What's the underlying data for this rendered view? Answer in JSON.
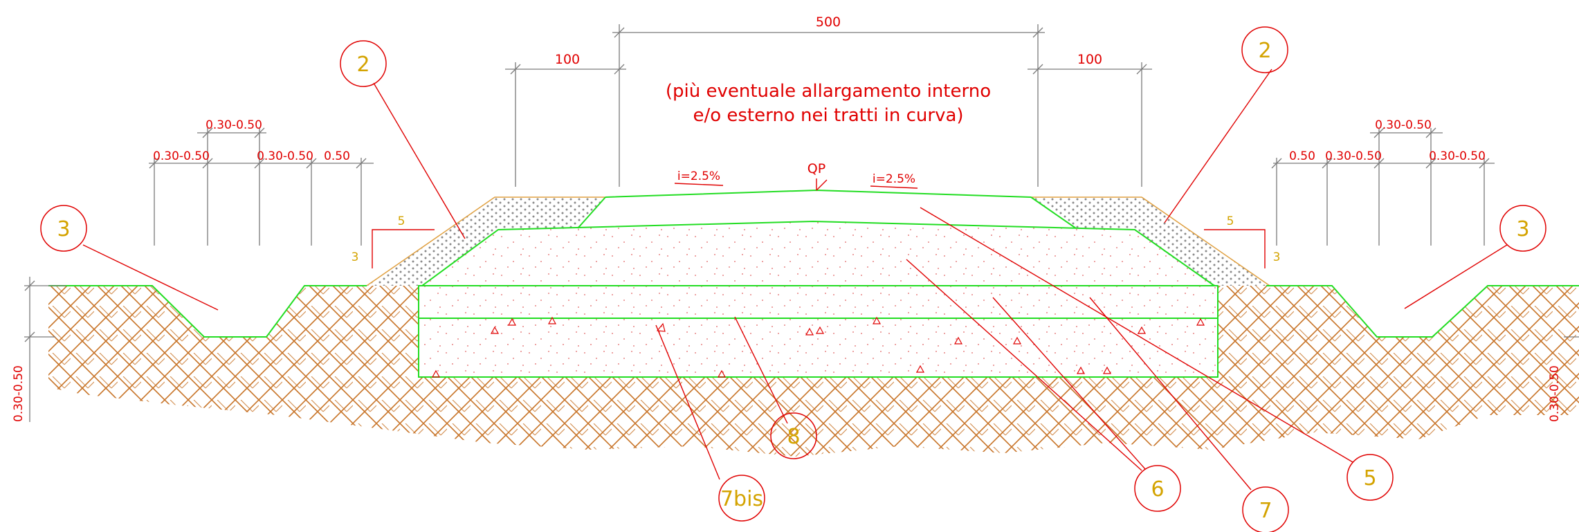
{
  "dimensions": {
    "top_total": "500",
    "top_left_shoulder": "100",
    "top_right_shoulder": "100",
    "left_a": "0.30-0.50",
    "left_b": "0.30-0.50",
    "left_c": "0.30-0.50",
    "left_d": "0.50",
    "right_a": "0.30-0.50",
    "right_b": "0.50",
    "right_c": "0.30-0.50",
    "right_d": "0.30-0.50",
    "left_vertical": "0.30-0.50",
    "right_vertical": "0.30-0.50",
    "slope_left_h": "5",
    "slope_left_v": "3",
    "slope_right_h": "5",
    "slope_right_v": "3"
  },
  "note": {
    "line1": "(più eventuale allargamento interno",
    "line2": "e/o esterno nei tratti in curva)"
  },
  "crown": {
    "label": "QP",
    "slope_left": "i=2.5%",
    "slope_right": "i=2.5%"
  },
  "callouts": {
    "c2_left": "2",
    "c2_right": "2",
    "c3_left": "3",
    "c3_right": "3",
    "c5": "5",
    "c6": "6",
    "c7": "7",
    "c7bis": "7bis",
    "c8": "8"
  },
  "colors": {
    "dimension": "#e00000",
    "callout": "#d4a300",
    "ground_line": "#22dd22",
    "hatch": "#c8752a",
    "fill_dots": "#e06060"
  }
}
